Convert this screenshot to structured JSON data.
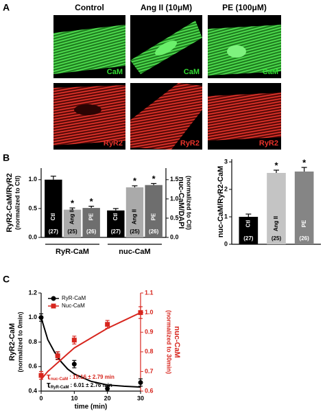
{
  "panel_labels": [
    "A",
    "B",
    "C"
  ],
  "images": {
    "columns": [
      "Control",
      "Ang II (10μM)",
      "PE (100μM)"
    ],
    "rows": [
      {
        "label": "CaM",
        "color": "#33dd33"
      },
      {
        "label": "RyR2",
        "color": "#e8322a"
      }
    ]
  },
  "chart_data": [
    {
      "type": "bar",
      "ylabel": [
        "RyR2-CaM/RyR2",
        "(normalized to Ctl)"
      ],
      "y2label": [
        "nuc-CaM/DAPI",
        "(normalized to Ctl)"
      ],
      "categories": [
        "Ctl",
        "Ang II",
        "PE"
      ],
      "category_colors": [
        "#000000",
        "#aaaaaa",
        "#6e6e6e"
      ],
      "n_labels": [
        "(27)",
        "(25)",
        "(26)"
      ],
      "series": [
        {
          "name": "RyR-CaM",
          "values": [
            1.0,
            0.48,
            0.51
          ],
          "errors": [
            0.06,
            0.03,
            0.03
          ],
          "markers": [
            null,
            "*",
            "*"
          ]
        },
        {
          "name": "nuc-CaM",
          "axis": "y2",
          "values": [
            0.7,
            1.3,
            1.36
          ],
          "errors": [
            0.05,
            0.04,
            0.04
          ],
          "markers": [
            null,
            "*",
            "*"
          ]
        }
      ],
      "ylim": [
        0,
        1.2
      ],
      "yticks": [
        {
          "value": 0,
          "label": "0.0"
        },
        0.5,
        {
          "value": 1,
          "label": "1.0"
        }
      ],
      "y2lim": [
        0,
        1.8
      ],
      "y2ticks": [
        {
          "value": 0,
          "label": "0.0"
        },
        0.5,
        {
          "value": 1,
          "label": "1.0"
        },
        1.5
      ]
    },
    {
      "type": "bar",
      "ylabel": [
        "nuc-CaM/RyR2-CaM"
      ],
      "categories": [
        "Ctl",
        "Ang II",
        "PE"
      ],
      "category_colors": [
        "#000000",
        "#c4c4c4",
        "#858585"
      ],
      "n_labels": [
        "(27)",
        "(25)",
        "(26)"
      ],
      "series": [
        {
          "values": [
            1.0,
            2.6,
            2.65
          ],
          "errors": [
            0.1,
            0.1,
            0.15
          ],
          "markers": [
            null,
            "*",
            "*"
          ]
        }
      ],
      "ylim": [
        0,
        3.1
      ],
      "yticks": [
        0,
        1,
        2,
        3
      ]
    },
    {
      "type": "line",
      "x": [
        0,
        5,
        10,
        20,
        30
      ],
      "xlabel": "time (min)",
      "ylabel": [
        "RyR2-CaM",
        "(normalized to 0min)"
      ],
      "y2label": [
        "nuc-CaM",
        "(normalized to 30min)"
      ],
      "y2color": "#d7261e",
      "series": [
        {
          "name": "RyR-CaM",
          "color": "#000000",
          "marker": "circle",
          "values": [
            1.0,
            0.69,
            0.62,
            0.42,
            0.47
          ],
          "errors": [
            0.03,
            0.03,
            0.03,
            0.02,
            0.03
          ],
          "fit": {
            "x": [
              0,
              2,
              4,
              6,
              8,
              10,
              15,
              20,
              25,
              30
            ],
            "values": [
              1.0,
              0.82,
              0.72,
              0.64,
              0.58,
              0.54,
              0.48,
              0.45,
              0.44,
              0.433
            ]
          }
        },
        {
          "name": "Nuc-CaM",
          "color": "#d7261e",
          "marker": "square",
          "axis": "y2",
          "values": [
            0.68,
            0.78,
            0.86,
            0.94,
            1.0
          ],
          "errors": [
            0.02,
            0.02,
            0.02,
            0.02,
            0.03
          ],
          "fit": {
            "x": [
              0,
              2,
              4,
              6,
              8,
              10,
              15,
              20,
              25,
              30
            ],
            "values": [
              0.66,
              0.7,
              0.73,
              0.76,
              0.79,
              0.82,
              0.87,
              0.92,
              0.96,
              1.0
            ]
          }
        }
      ],
      "xlim": [
        0,
        30
      ],
      "xticks": [
        0,
        10,
        20,
        30
      ],
      "ylim": [
        0.4,
        1.2
      ],
      "yticks": [
        0.4,
        0.6,
        0.8,
        {
          "value": 1,
          "label": "1.0"
        },
        1.2
      ],
      "y2lim": [
        0.6,
        1.1
      ],
      "y2ticks": [
        0.6,
        0.7,
        0.8,
        0.9,
        {
          "value": 1,
          "label": "1.0"
        },
        1.1
      ],
      "annotations": [
        {
          "symbol": "τ",
          "subscript": "nuc-CaM",
          "text": ": 19.16 ± 2.79 min",
          "color": "#d7261e"
        },
        {
          "symbol": "τ",
          "subscript": "RyR-CaM",
          "text": ": 6.01 ± 2.76 min",
          "color": "#000000"
        }
      ]
    }
  ]
}
